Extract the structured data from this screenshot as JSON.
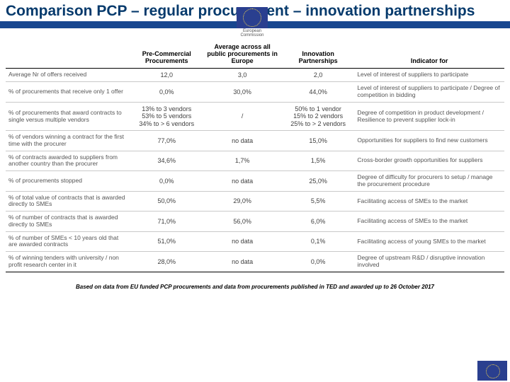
{
  "title": "Comparison PCP – regular procurement – innovation partnerships",
  "columns": {
    "rowlabel": "",
    "pcp": "Pre-Commercial Procurements",
    "reg": "Average across all public procurements in Europe",
    "ip": "Innovation Partnerships",
    "indicator": "Indicator for"
  },
  "rows": [
    {
      "label": "Average Nr of offers received",
      "pcp": "12,0",
      "reg": "3,0",
      "ip": "2,0",
      "indicator": "Level of interest of suppliers to participate"
    },
    {
      "label": "% of procurements that receive only 1 offer",
      "pcp": "0,0%",
      "reg": "30,0%",
      "ip": "44,0%",
      "indicator": "Level of interest of suppliers to participate / Degree of competition in bidding"
    },
    {
      "label": "% of procurements that award contracts to single versus multiple vendors",
      "pcp": "13% to 3 vendors\n53% to 5 vendors\n34% to > 6 vendors",
      "reg": "/",
      "ip": "50% to 1 vendor\n15% to 2 vendors\n25% to > 2 vendors",
      "indicator": "Degree of competition in product development / Resilience to prevent supplier lock-in"
    },
    {
      "label": "% of vendors winning a contract for the first time with the procurer",
      "pcp": "77,0%",
      "reg": "no data",
      "ip": "15,0%",
      "indicator": "Opportunities for suppliers to find new customers"
    },
    {
      "label": "% of contracts awarded to suppliers from another country than the procurer",
      "pcp": "34,6%",
      "reg": "1,7%",
      "ip": "1,5%",
      "indicator": "Cross-border growth opportunities for suppliers"
    },
    {
      "label": "% of procurements stopped",
      "pcp": "0,0%",
      "reg": "no data",
      "ip": "25,0%",
      "indicator": "Degree of difficulty for procurers to setup / manage the procurement procedure"
    },
    {
      "label": "% of total value of contracts that is awarded directly to SMEs",
      "pcp": "50,0%",
      "reg": "29,0%",
      "ip": "5,5%",
      "indicator": "Facilitating access of SMEs to the market"
    },
    {
      "label": "% of number of contracts that is awarded directly to SMEs",
      "pcp": "71,0%",
      "reg": "56,0%",
      "ip": "6,0%",
      "indicator": "Facilitating access of SMEs to the market"
    },
    {
      "label": "% of number of SMEs < 10 years old that are awarded contracts",
      "pcp": "51,0%",
      "reg": "no data",
      "ip": "0,1%",
      "indicator": "Facilitating access of young SMEs to the market"
    },
    {
      "label": "% of winning tenders with university / non profit research center in it",
      "pcp": "28,0%",
      "reg": "no data",
      "ip": "0,0%",
      "indicator": "Degree of upstream R&D / disruptive innovation involved",
      "last": true
    }
  ],
  "footnote": "Based on data from EU funded PCP procurements and data from procurements published in TED and awarded up to 26 October 2017",
  "ec_label": "European\nCommission"
}
